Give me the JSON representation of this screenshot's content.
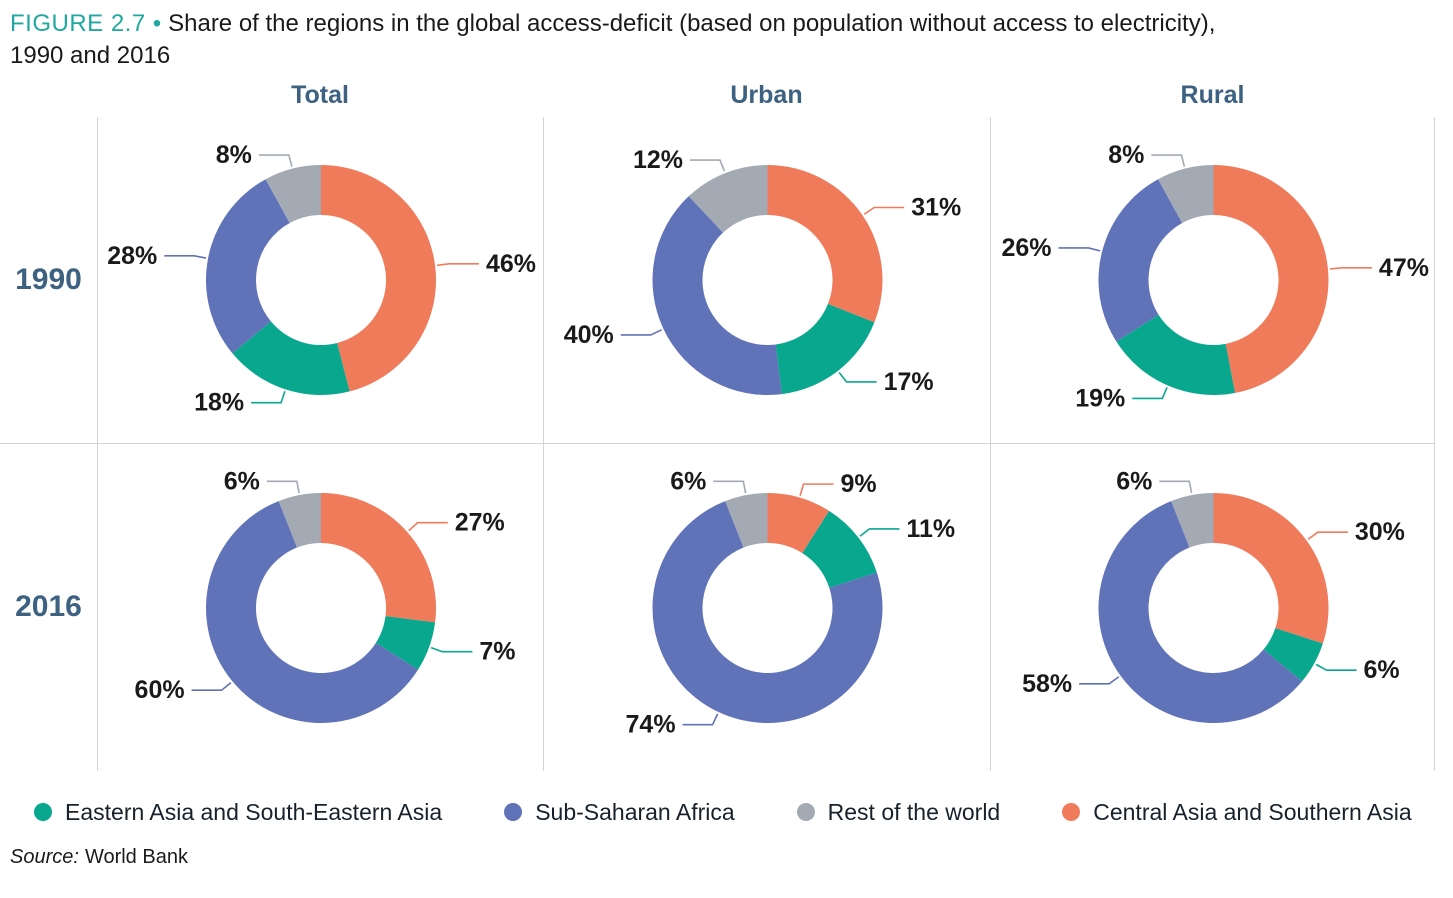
{
  "figure": {
    "label": "FIGURE 2.7",
    "separator": "•",
    "title_line1": "Share of the regions in the global access-deficit (based on population without access to electricity),",
    "title_line2": "1990 and 2016"
  },
  "columns": [
    "Total",
    "Urban",
    "Rural"
  ],
  "rows": [
    "1990",
    "2016"
  ],
  "legend": [
    {
      "label": "Eastern Asia and South-Eastern Asia",
      "color": "#0aa78f"
    },
    {
      "label": "Sub-Saharan Africa",
      "color": "#6173b8"
    },
    {
      "label": "Rest of the world",
      "color": "#a3aab4"
    },
    {
      "label": "Central Asia and Southern Asia",
      "color": "#ef7b5b"
    }
  ],
  "source": {
    "prefix": "Source:",
    "text": "World Bank"
  },
  "chart_data": {
    "type": "pie",
    "subtype": "donut",
    "unit": "%",
    "title": "Share of the regions in the global access-deficit (based on population without access to electricity), 1990 and 2016",
    "layout": {
      "rows": [
        "1990",
        "2016"
      ],
      "columns": [
        "Total",
        "Urban",
        "Rural"
      ],
      "legend_position": "bottom",
      "segments_start": "12 o'clock, clockwise",
      "value_labels": "outside with leader lines"
    },
    "regions": [
      {
        "key": "central_asia_southern_asia",
        "name": "Central Asia and Southern Asia",
        "color": "#ef7b5b"
      },
      {
        "key": "eastern_asia_south_eastern_asia",
        "name": "Eastern Asia and South-Eastern Asia",
        "color": "#0aa78f"
      },
      {
        "key": "sub_saharan_africa",
        "name": "Sub-Saharan Africa",
        "color": "#6173b8"
      },
      {
        "key": "rest_of_the_world",
        "name": "Rest of the world",
        "color": "#a3aab4"
      }
    ],
    "charts": [
      {
        "row": "1990",
        "column": "Total",
        "values": {
          "central_asia_southern_asia": 46,
          "eastern_asia_south_eastern_asia": 18,
          "sub_saharan_africa": 28,
          "rest_of_the_world": 8
        }
      },
      {
        "row": "1990",
        "column": "Urban",
        "values": {
          "central_asia_southern_asia": 31,
          "eastern_asia_south_eastern_asia": 17,
          "sub_saharan_africa": 40,
          "rest_of_the_world": 12
        }
      },
      {
        "row": "1990",
        "column": "Rural",
        "values": {
          "central_asia_southern_asia": 47,
          "eastern_asia_south_eastern_asia": 19,
          "sub_saharan_africa": 26,
          "rest_of_the_world": 8
        }
      },
      {
        "row": "2016",
        "column": "Total",
        "values": {
          "central_asia_southern_asia": 27,
          "eastern_asia_south_eastern_asia": 7,
          "sub_saharan_africa": 60,
          "rest_of_the_world": 6
        }
      },
      {
        "row": "2016",
        "column": "Urban",
        "values": {
          "central_asia_southern_asia": 9,
          "eastern_asia_south_eastern_asia": 11,
          "sub_saharan_africa": 74,
          "rest_of_the_world": 6
        }
      },
      {
        "row": "2016",
        "column": "Rural",
        "values": {
          "central_asia_southern_asia": 30,
          "eastern_asia_south_eastern_asia": 6,
          "sub_saharan_africa": 58,
          "rest_of_the_world": 6
        }
      }
    ]
  }
}
